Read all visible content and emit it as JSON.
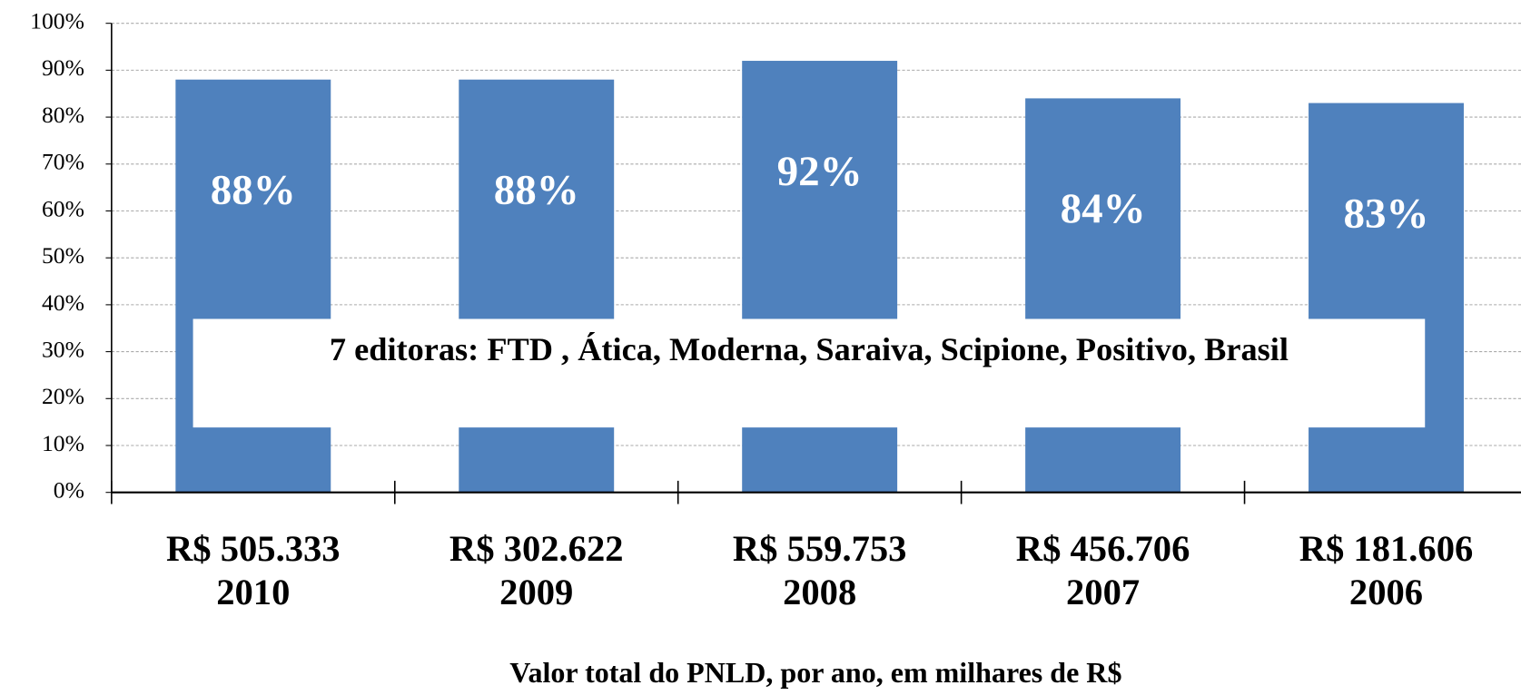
{
  "chart_data": {
    "type": "bar",
    "categories": [
      "R$ 505.333\n2010",
      "R$ 302.622\n2009",
      "R$ 559.753\n2008",
      "R$ 456.706\n2007",
      "R$ 181.606\n2006"
    ],
    "values": [
      88,
      88,
      92,
      84,
      83
    ],
    "value_labels": [
      "88%",
      "88%",
      "92%",
      "84%",
      "83%"
    ],
    "color": "#4f81bd",
    "ylim": [
      0,
      100
    ],
    "yticks": [
      {
        "value": 0,
        "label": "0%"
      },
      {
        "value": 10,
        "label": "10%"
      },
      {
        "value": 20,
        "label": "20%"
      },
      {
        "value": 30,
        "label": "30%"
      },
      {
        "value": 40,
        "label": "40%"
      },
      {
        "value": 50,
        "label": "50%"
      },
      {
        "value": 60,
        "label": "60%"
      },
      {
        "value": 70,
        "label": "70%"
      },
      {
        "value": 80,
        "label": "80%"
      },
      {
        "value": 90,
        "label": "90%"
      },
      {
        "value": 100,
        "label": "100%"
      }
    ],
    "grid": true,
    "annotation": "7 editoras: FTD , Ática, Moderna, Saraiva, Scipione, Positivo, Brasil",
    "x_label": "Valor total do PNLD, por ano, em milhares de R$"
  }
}
